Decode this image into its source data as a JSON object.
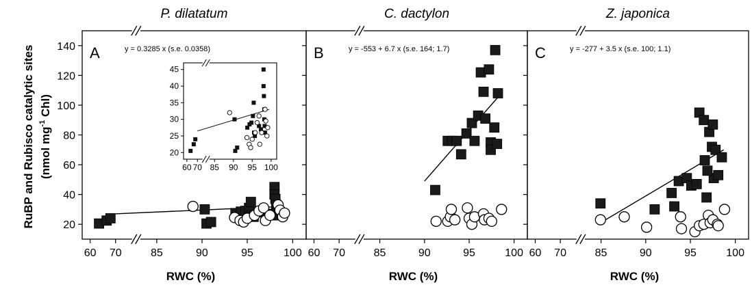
{
  "figure": {
    "ylabel_line1": "RuBP and Rubisco catalytic sites",
    "ylabel_line2_pre": "(nmol mg",
    "ylabel_line2_sup": "-1",
    "ylabel_line2_post": " Chl)",
    "xlabel": "RWC (%)"
  },
  "chart_data": [
    {
      "type": "scatter",
      "panel": "A",
      "title": "P. dilatatum",
      "annotation": "y = 0.3285 x  (s.e. 0.0358)",
      "xlabel": "RWC (%)",
      "ylabel": "RuBP and Rubisco catalytic sites (nmol mg-1 Chl)",
      "x_ticks": [
        "60",
        "70",
        "85",
        "90",
        "95",
        "100"
      ],
      "y_ticks": [
        20,
        40,
        60,
        80,
        100,
        120,
        140
      ],
      "ylim": [
        10,
        150
      ],
      "axis_break": "between 70 and 85",
      "series": [
        {
          "marker": "filled-square",
          "points": [
            [
              63.5,
              20.5
            ],
            [
              66.5,
              22.5
            ],
            [
              68,
              24
            ],
            [
              90.3,
              30
            ],
            [
              90.5,
              20.5
            ],
            [
              91,
              21.5
            ],
            [
              93.7,
              27.5
            ],
            [
              94.3,
              28.5
            ],
            [
              94.8,
              29
            ],
            [
              95.2,
              31
            ],
            [
              95.4,
              35
            ],
            [
              95.5,
              26
            ],
            [
              95.7,
              25
            ],
            [
              96.8,
              28
            ],
            [
              97.3,
              27
            ],
            [
              97.6,
              26
            ],
            [
              98,
              45
            ],
            [
              98,
              40
            ],
            [
              98.1,
              37
            ],
            [
              98.2,
              33
            ],
            [
              98.2,
              30
            ],
            [
              98.3,
              28
            ],
            [
              98.4,
              26
            ]
          ]
        },
        {
          "marker": "open-circle",
          "points": [
            [
              89,
              32
            ],
            [
              93.6,
              24.5
            ],
            [
              94.2,
              22.5
            ],
            [
              94.6,
              21.5
            ],
            [
              95,
              24
            ],
            [
              95.8,
              26
            ],
            [
              96.3,
              29
            ],
            [
              96.8,
              31
            ],
            [
              97,
              22.5
            ],
            [
              97.5,
              26
            ],
            [
              98.4,
              33
            ],
            [
              98.6,
              29.5
            ],
            [
              98.9,
              25
            ],
            [
              99.1,
              27.5
            ]
          ]
        }
      ],
      "fit_line": {
        "x": [
          70,
          99
        ],
        "y": [
          27,
          32
        ]
      },
      "inset": {
        "x_ticks": [
          "60",
          "70",
          "85",
          "90",
          "95",
          "100"
        ],
        "y_ticks": [
          20,
          25,
          30,
          35,
          40,
          45
        ],
        "ylim": [
          18,
          47
        ],
        "series": [
          {
            "marker": "filled-square",
            "points": [
              [
                63.5,
                20.5
              ],
              [
                66.5,
                22.5
              ],
              [
                68,
                24
              ],
              [
                90.3,
                30
              ],
              [
                90.5,
                20.5
              ],
              [
                91,
                21.5
              ],
              [
                93.7,
                27.5
              ],
              [
                94.3,
                28.5
              ],
              [
                94.8,
                29
              ],
              [
                95.2,
                31
              ],
              [
                95.4,
                35
              ],
              [
                95.5,
                26
              ],
              [
                95.7,
                25
              ],
              [
                96.8,
                28
              ],
              [
                97.3,
                27
              ],
              [
                97.6,
                26
              ],
              [
                98,
                45
              ],
              [
                98,
                40
              ],
              [
                98.1,
                37
              ],
              [
                98.2,
                33
              ],
              [
                98.2,
                30
              ],
              [
                98.3,
                28
              ],
              [
                98.4,
                26
              ]
            ]
          },
          {
            "marker": "open-circle",
            "points": [
              [
                89,
                32
              ],
              [
                93.6,
                24.5
              ],
              [
                94.2,
                22.5
              ],
              [
                94.6,
                21.5
              ],
              [
                95,
                24
              ],
              [
                95.8,
                26
              ],
              [
                96.3,
                29
              ],
              [
                96.8,
                31
              ],
              [
                97,
                22.5
              ],
              [
                97.5,
                26
              ],
              [
                98.4,
                33
              ],
              [
                98.6,
                29.5
              ],
              [
                98.9,
                25
              ],
              [
                99.1,
                27.5
              ]
            ]
          }
        ],
        "fit_line": {
          "x": [
            70,
            99.5
          ],
          "y": [
            26.5,
            33
          ]
        }
      }
    },
    {
      "type": "scatter",
      "panel": "B",
      "title": "C. dactylon",
      "annotation": "y = -553 + 6.7 x  (s.e. 164; 1.7)",
      "xlabel": "RWC (%)",
      "x_ticks": [
        "60",
        "70",
        "85",
        "90",
        "95",
        "100"
      ],
      "y_ticks": [
        20,
        40,
        60,
        80,
        100,
        120,
        140
      ],
      "ylim": [
        10,
        150
      ],
      "axis_break": "between 70 and 85",
      "series": [
        {
          "marker": "filled-square",
          "points": [
            [
              91.2,
              43
            ],
            [
              92.6,
              76
            ],
            [
              93.1,
              76
            ],
            [
              93.6,
              76
            ],
            [
              94.1,
              67
            ],
            [
              94.7,
              81
            ],
            [
              95.3,
              88
            ],
            [
              95.6,
              76
            ],
            [
              96,
              93
            ],
            [
              96.3,
              122
            ],
            [
              96.6,
              109
            ],
            [
              96.8,
              91
            ],
            [
              97.2,
              124
            ],
            [
              97.4,
              75
            ],
            [
              97.4,
              70
            ],
            [
              97.8,
              85
            ],
            [
              98.1,
              74
            ],
            [
              97.9,
              137
            ],
            [
              98.2,
              108
            ]
          ]
        },
        {
          "marker": "open-circle",
          "points": [
            [
              91.3,
              22
            ],
            [
              92.6,
              22
            ],
            [
              92.9,
              25
            ],
            [
              93,
              30
            ],
            [
              93.4,
              23
            ],
            [
              94.8,
              31
            ],
            [
              95,
              24
            ],
            [
              95.3,
              20
            ],
            [
              95.6,
              25
            ],
            [
              96.6,
              27
            ],
            [
              96.7,
              23
            ],
            [
              97.2,
              24
            ],
            [
              97.5,
              22
            ],
            [
              98.6,
              30
            ]
          ]
        }
      ],
      "fit_line": {
        "x": [
          90,
          98.3
        ],
        "y": [
          49,
          106
        ]
      }
    },
    {
      "type": "scatter",
      "panel": "C",
      "title": "Z. japonica",
      "annotation": "y = -277 + 3.5 x  (s.e. 100; 1.1)",
      "xlabel": "RWC (%)",
      "x_ticks": [
        "60",
        "70",
        "85",
        "90",
        "95",
        "100"
      ],
      "y_ticks": [
        20,
        40,
        60,
        80,
        100,
        120,
        140
      ],
      "ylim": [
        10,
        150
      ],
      "axis_break": "between 70 and 85",
      "series": [
        {
          "marker": "filled-square",
          "points": [
            [
              84.8,
              34
            ],
            [
              91,
              30
            ],
            [
              92.9,
              41
            ],
            [
              93.2,
              32
            ],
            [
              93.7,
              49
            ],
            [
              94.6,
              51
            ],
            [
              95.1,
              46
            ],
            [
              95.7,
              47
            ],
            [
              96,
              95
            ],
            [
              96.5,
              90
            ],
            [
              96.6,
              63
            ],
            [
              96.8,
              38
            ],
            [
              97.1,
              82
            ],
            [
              97.4,
              72
            ],
            [
              97.5,
              87
            ],
            [
              97.6,
              51
            ],
            [
              97.8,
              70
            ],
            [
              98.1,
              53
            ],
            [
              98.5,
              65
            ],
            [
              96.9,
              56
            ]
          ]
        },
        {
          "marker": "open-circle",
          "points": [
            [
              84.8,
              23
            ],
            [
              87.6,
              25
            ],
            [
              90.1,
              18
            ],
            [
              93.9,
              25
            ],
            [
              94,
              17
            ],
            [
              95.5,
              15
            ],
            [
              96,
              19
            ],
            [
              96.5,
              20
            ],
            [
              97,
              26
            ],
            [
              97.2,
              21
            ],
            [
              97.5,
              23
            ],
            [
              98,
              20
            ],
            [
              98.1,
              19
            ],
            [
              98.8,
              30
            ]
          ]
        }
      ],
      "fit_line": {
        "x": [
          84.8,
          98.7
        ],
        "y": [
          21,
          70
        ]
      }
    }
  ]
}
